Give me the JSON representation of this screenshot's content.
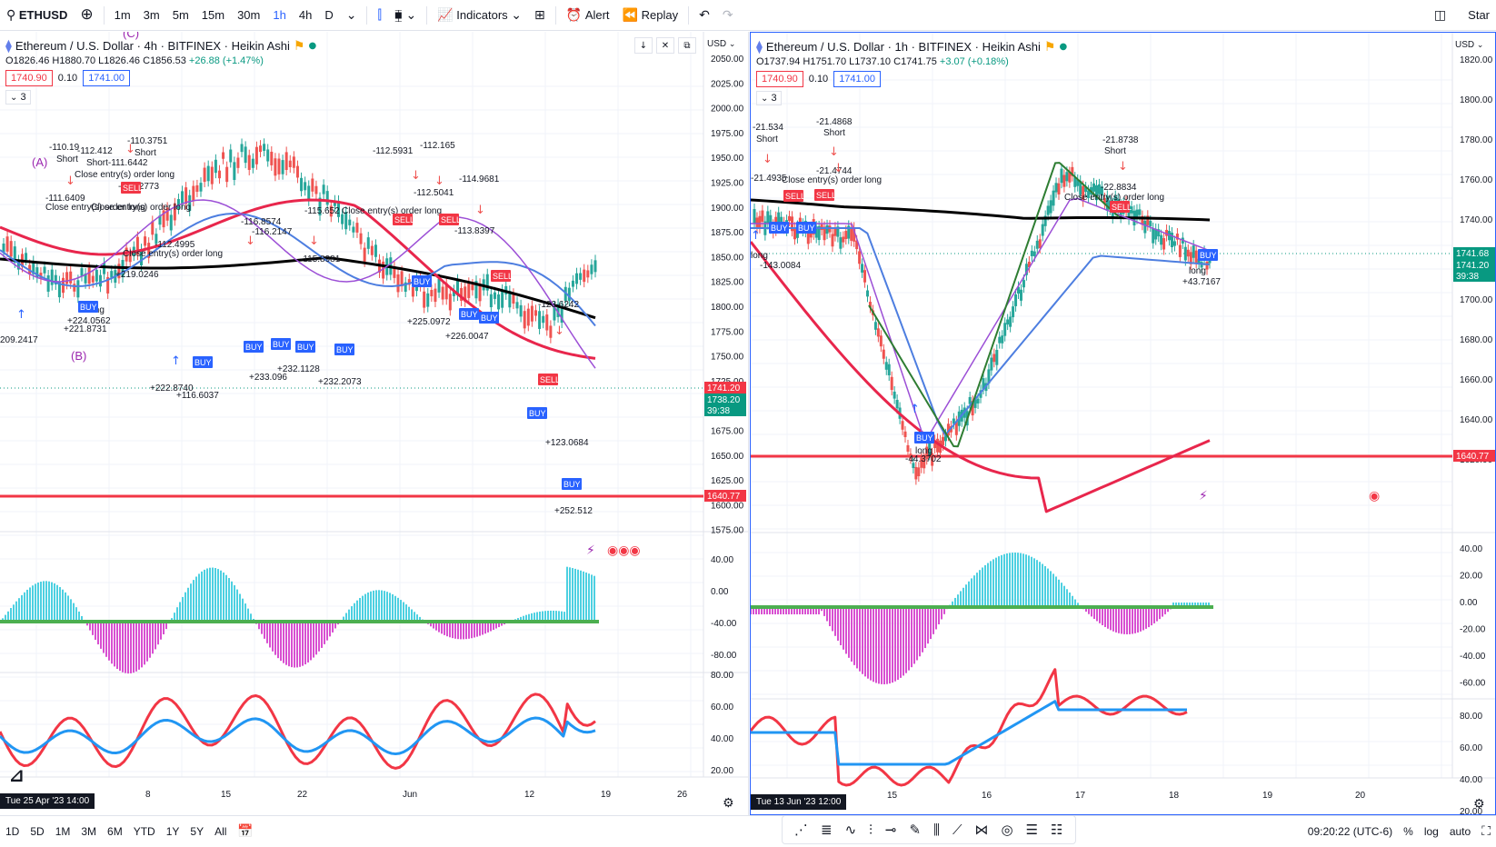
{
  "toolbar": {
    "symbol": "ETHUSD",
    "intervals": [
      "1m",
      "3m",
      "5m",
      "15m",
      "30m",
      "1h",
      "4h",
      "D"
    ],
    "active_interval": "1h",
    "indicators_label": "Indicators",
    "alert_label": "Alert",
    "replay_label": "Replay",
    "right_label": "Star"
  },
  "left_chart": {
    "title": "Ethereum / U.S. Dollar · 4h · BITFINEX · Heikin Ashi",
    "ohlc": {
      "o": "O1826.46",
      "h": "H1880.70",
      "l": "L1826.46",
      "c": "C1856.53",
      "chg": "+26.88 (+1.47%)"
    },
    "sell_price": "1740.90",
    "spread": "0.10",
    "buy_price": "1741.00",
    "collapse": "3",
    "currency": "USD",
    "price_ticks": [
      "2050.00",
      "2025.00",
      "2000.00",
      "1975.00",
      "1950.00",
      "1925.00",
      "1900.00",
      "1875.00",
      "1850.00",
      "1825.00",
      "1800.00",
      "1775.00",
      "1750.00",
      "1725.00",
      "1700.00",
      "1675.00",
      "1650.00",
      "1625.00",
      "1600.00",
      "1575.00"
    ],
    "price_tag_current": "1741.20",
    "price_tag_close": "1738.20",
    "countdown": "39:38",
    "support": "1640.77",
    "macd_ticks": [
      "40.00",
      "0.00",
      "-40.00",
      "-80.00"
    ],
    "rsi_ticks": [
      "80.00",
      "60.00",
      "40.00",
      "20.00"
    ],
    "time_ticks": [
      "8",
      "15",
      "22",
      "Jun",
      "12",
      "19",
      "26"
    ],
    "time_chip": "Tue 25 Apr '23  14:00",
    "marker_a": "(A)",
    "marker_b": "(B)",
    "marker_c": "(C)",
    "annotations": [
      {
        "t": "-110.19",
        "k": "label"
      },
      {
        "t": "Short",
        "k": "label"
      },
      {
        "t": "-112.412",
        "k": "label"
      },
      {
        "t": "-110.3751",
        "k": "label"
      },
      {
        "t": "Short",
        "k": "label"
      },
      {
        "t": "Short-111.6442",
        "k": "label"
      },
      {
        "t": "Close entry(s) order long",
        "k": "label"
      },
      {
        "t": "-109.2773",
        "k": "label"
      },
      {
        "t": "-111.6409",
        "k": "label"
      },
      {
        "t": "Close entry(s) order long",
        "k": "label"
      },
      {
        "t": "Close entry(s) order long",
        "k": "label"
      },
      {
        "t": "-112.4995",
        "k": "label"
      },
      {
        "t": "Close entry(s) order long",
        "k": "label"
      },
      {
        "t": "+219.0246",
        "k": "label"
      },
      {
        "t": "long",
        "k": "label"
      },
      {
        "t": "+224.0562",
        "k": "label"
      },
      {
        "t": "+221.8731",
        "k": "label"
      },
      {
        "t": "209.2417",
        "k": "label"
      },
      {
        "t": "-116.8574",
        "k": "label"
      },
      {
        "t": "-116.2147",
        "k": "label"
      },
      {
        "t": "-115.652",
        "k": "label"
      },
      {
        "t": "Close entry(s) order long",
        "k": "label"
      },
      {
        "t": "-112.5931",
        "k": "label"
      },
      {
        "t": "-112.165",
        "k": "label"
      },
      {
        "t": "-112.5041",
        "k": "label"
      },
      {
        "t": "-114.9681",
        "k": "label"
      },
      {
        "t": "-113.8397",
        "k": "label"
      },
      {
        "t": "-115.8981",
        "k": "label"
      },
      {
        "t": "+225.0972",
        "k": "label"
      },
      {
        "t": "+226.0047",
        "k": "label"
      },
      {
        "t": "-123.6242",
        "k": "label"
      },
      {
        "t": "+222.8740",
        "k": "label"
      },
      {
        "t": "+116.6037",
        "k": "label"
      },
      {
        "t": "+233.096",
        "k": "label"
      },
      {
        "t": "+232.1128",
        "k": "label"
      },
      {
        "t": "+232.2073",
        "k": "label"
      },
      {
        "t": "+123.0684",
        "k": "label"
      },
      {
        "t": "+252.512",
        "k": "label"
      }
    ]
  },
  "right_chart": {
    "title": "Ethereum / U.S. Dollar · 1h · BITFINEX · Heikin Ashi",
    "ohlc": {
      "o": "O1737.94",
      "h": "H1751.70",
      "l": "L1737.10",
      "c": "C1741.75",
      "chg": "+3.07 (+0.18%)"
    },
    "sell_price": "1740.90",
    "spread": "0.10",
    "buy_price": "1741.00",
    "collapse": "3",
    "currency": "USD",
    "price_ticks": [
      "1820.00",
      "1800.00",
      "1780.00",
      "1760.00",
      "1740.00",
      "1720.00",
      "1700.00",
      "1680.00",
      "1660.00",
      "1640.00",
      "1620.00"
    ],
    "price_tag_current": "1741.68",
    "countdown": "39:38",
    "price_tag_close": "1741.20",
    "support": "1640.77",
    "macd_ticks": [
      "40.00",
      "20.00",
      "0.00",
      "-20.00",
      "-40.00",
      "-60.00"
    ],
    "rsi_ticks": [
      "80.00",
      "60.00",
      "40.00",
      "20.00"
    ],
    "time_ticks": [
      "15",
      "16",
      "17",
      "18",
      "19",
      "20"
    ],
    "time_chip": "Tue 13 Jun '23  12:00",
    "annotations": [
      {
        "t": "-21.534"
      },
      {
        "t": "Short"
      },
      {
        "t": "-21.4868"
      },
      {
        "t": "Short"
      },
      {
        "t": "-21.4935"
      },
      {
        "t": "-21.4744"
      },
      {
        "t": "Close entry(s) order long"
      },
      {
        "t": "-21.8738"
      },
      {
        "t": "Short"
      },
      {
        "t": "-22.8834"
      },
      {
        "t": "Close entry(s) order long"
      },
      {
        "t": "long"
      },
      {
        "t": "-143.0084"
      },
      {
        "t": "long"
      },
      {
        "t": "-44.3702"
      },
      {
        "t": "long"
      },
      {
        "t": "+43.7167"
      }
    ]
  },
  "bottombar": {
    "ranges": [
      "1D",
      "5D",
      "1M",
      "3M",
      "6M",
      "YTD",
      "1Y",
      "5Y",
      "All"
    ],
    "clock": "09:20:22 (UTC-6)",
    "pct": "%",
    "log": "log",
    "auto": "auto"
  },
  "colors": {
    "support": "#f23645",
    "ema_black": "#000000",
    "ema_red": "#e8264c",
    "ema_blue": "#4d7ee0",
    "ema_purple": "#9c4fd6",
    "up": "#26a69a",
    "down": "#ef5350",
    "macd_pos": "#4dd0e1",
    "macd_neg": "#d84fd1",
    "rsi_red": "#f23645",
    "rsi_blue": "#2196f3"
  }
}
